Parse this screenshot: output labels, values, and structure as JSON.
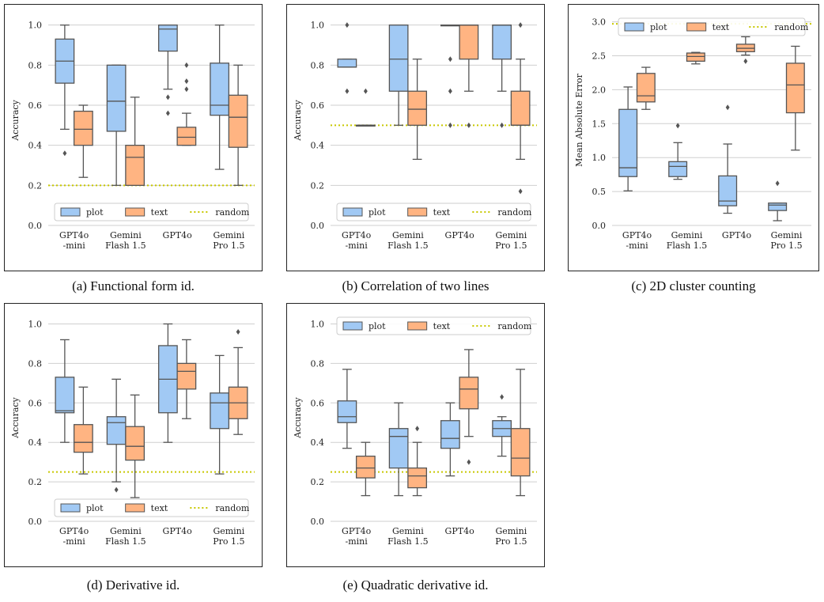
{
  "colors": {
    "plot": "#a1c9f4",
    "text": "#ffb482",
    "random": "#c8c800",
    "edge": "#555555",
    "grid": "#cfcfcf"
  },
  "captions": [
    "(a) Functional form id.",
    "(b) Correlation of two lines",
    "(c) 2D cluster counting",
    "(d) Derivative id.",
    "(e) Quadratic derivative id."
  ],
  "chart_data": [
    {
      "type": "box",
      "ylabel": "Accuracy",
      "ylim": [
        0,
        1.05
      ],
      "yticks": [
        "0.0",
        "0.2",
        "0.4",
        "0.6",
        "0.8",
        "1.0"
      ],
      "ytick_values": [
        0,
        0.2,
        0.4,
        0.6,
        0.8,
        1.0
      ],
      "categories": [
        [
          "GPT4o",
          "-mini"
        ],
        [
          "Gemini",
          "Flash 1.5"
        ],
        [
          "GPT4o"
        ],
        [
          "Gemini",
          "Pro 1.5"
        ]
      ],
      "legend": {
        "placement": "bottom",
        "labels": [
          "plot",
          "text",
          "random"
        ]
      },
      "random": 0.2,
      "series": [
        {
          "name": "plot",
          "boxes": [
            {
              "whislo": 0.48,
              "q1": 0.71,
              "med": 0.82,
              "q3": 0.93,
              "whishi": 1.0,
              "fliers": [
                0.36
              ]
            },
            {
              "whislo": 0.2,
              "q1": 0.47,
              "med": 0.62,
              "q3": 0.8,
              "whishi": 0.8,
              "fliers": []
            },
            {
              "whislo": 0.68,
              "q1": 0.87,
              "med": 0.98,
              "q3": 1.0,
              "whishi": 1.0,
              "fliers": [
                0.64,
                0.56
              ]
            },
            {
              "whislo": 0.28,
              "q1": 0.55,
              "med": 0.6,
              "q3": 0.81,
              "whishi": 1.0,
              "fliers": []
            }
          ]
        },
        {
          "name": "text",
          "boxes": [
            {
              "whislo": 0.24,
              "q1": 0.4,
              "med": 0.48,
              "q3": 0.57,
              "whishi": 0.6,
              "fliers": []
            },
            {
              "whislo": 0.2,
              "q1": 0.2,
              "med": 0.34,
              "q3": 0.4,
              "whishi": 0.64,
              "fliers": []
            },
            {
              "whislo": 0.4,
              "q1": 0.4,
              "med": 0.44,
              "q3": 0.49,
              "whishi": 0.56,
              "fliers": [
                0.8,
                0.72,
                0.68
              ]
            },
            {
              "whislo": 0.2,
              "q1": 0.39,
              "med": 0.54,
              "q3": 0.65,
              "whishi": 0.8,
              "fliers": []
            }
          ]
        }
      ]
    },
    {
      "type": "box",
      "ylabel": "Accuracy",
      "ylim": [
        0,
        1.05
      ],
      "yticks": [
        "0.0",
        "0.2",
        "0.4",
        "0.6",
        "0.8",
        "1.0"
      ],
      "ytick_values": [
        0,
        0.2,
        0.4,
        0.6,
        0.8,
        1.0
      ],
      "categories": [
        [
          "GPT4o",
          "-mini"
        ],
        [
          "Gemini",
          "Flash 1.5"
        ],
        [
          "GPT4o"
        ],
        [
          "Gemini",
          "Pro 1.5"
        ]
      ],
      "legend": {
        "placement": "bottom",
        "labels": [
          "plot",
          "text",
          "random"
        ]
      },
      "random": 0.5,
      "series": [
        {
          "name": "plot",
          "boxes": [
            {
              "whislo": 0.79,
              "q1": 0.79,
              "med": 0.79,
              "q3": 0.83,
              "whishi": 0.83,
              "fliers": [
                1.0,
                0.67
              ]
            },
            {
              "whislo": 0.5,
              "q1": 0.67,
              "med": 0.83,
              "q3": 1.0,
              "whishi": 1.0,
              "fliers": []
            },
            {
              "whislo": 1.0,
              "q1": 1.0,
              "med": 1.0,
              "q3": 1.0,
              "whishi": 1.0,
              "fliers": [
                0.83,
                0.67,
                0.5
              ]
            },
            {
              "whislo": 0.67,
              "q1": 0.83,
              "med": 1.0,
              "q3": 1.0,
              "whishi": 1.0,
              "fliers": [
                0.5
              ]
            }
          ]
        },
        {
          "name": "text",
          "boxes": [
            {
              "whislo": 0.5,
              "q1": 0.5,
              "med": 0.5,
              "q3": 0.5,
              "whishi": 0.5,
              "fliers": [
                0.67
              ]
            },
            {
              "whislo": 0.33,
              "q1": 0.5,
              "med": 0.58,
              "q3": 0.67,
              "whishi": 0.83,
              "fliers": []
            },
            {
              "whislo": 0.67,
              "q1": 0.83,
              "med": 1.0,
              "q3": 1.0,
              "whishi": 1.0,
              "fliers": [
                0.5
              ]
            },
            {
              "whislo": 0.33,
              "q1": 0.5,
              "med": 0.5,
              "q3": 0.67,
              "whishi": 0.83,
              "fliers": [
                1.0,
                0.17
              ]
            }
          ]
        }
      ]
    },
    {
      "type": "box",
      "ylabel": "Mean Absolute Error",
      "ylim": [
        0,
        3.1
      ],
      "yticks": [
        "0.0",
        "0.5",
        "1.0",
        "1.5",
        "2.0",
        "2.5",
        "3.0"
      ],
      "ytick_values": [
        0,
        0.5,
        1.0,
        1.5,
        2.0,
        2.5,
        3.0
      ],
      "categories": [
        [
          "GPT4o",
          "-mini"
        ],
        [
          "Gemini",
          "Flash 1.5"
        ],
        [
          "GPT4o"
        ],
        [
          "Gemini",
          "Pro 1.5"
        ]
      ],
      "legend": {
        "placement": "top",
        "labels": [
          "plot",
          "text",
          "random"
        ]
      },
      "random": 2.97,
      "series": [
        {
          "name": "plot",
          "boxes": [
            {
              "whislo": 0.51,
              "q1": 0.72,
              "med": 0.85,
              "q3": 1.71,
              "whishi": 2.04,
              "fliers": []
            },
            {
              "whislo": 0.68,
              "q1": 0.72,
              "med": 0.87,
              "q3": 0.94,
              "whishi": 1.22,
              "fliers": [
                1.47
              ]
            },
            {
              "whislo": 0.18,
              "q1": 0.29,
              "med": 0.36,
              "q3": 0.73,
              "whishi": 1.2,
              "fliers": [
                1.74
              ]
            },
            {
              "whislo": 0.07,
              "q1": 0.22,
              "med": 0.3,
              "q3": 0.33,
              "whishi": 0.33,
              "fliers": [
                0.62
              ]
            }
          ]
        },
        {
          "name": "text",
          "boxes": [
            {
              "whislo": 1.71,
              "q1": 1.82,
              "med": 1.91,
              "q3": 2.24,
              "whishi": 2.33,
              "fliers": []
            },
            {
              "whislo": 2.38,
              "q1": 2.42,
              "med": 2.49,
              "q3": 2.54,
              "whishi": 2.55,
              "fliers": []
            },
            {
              "whislo": 2.51,
              "q1": 2.56,
              "med": 2.61,
              "q3": 2.67,
              "whishi": 2.78,
              "fliers": [
                2.42
              ]
            },
            {
              "whislo": 1.11,
              "q1": 1.66,
              "med": 2.07,
              "q3": 2.39,
              "whishi": 2.64,
              "fliers": []
            }
          ]
        }
      ]
    },
    {
      "type": "box",
      "ylabel": "Accuracy",
      "ylim": [
        0,
        1.05
      ],
      "yticks": [
        "0.0",
        "0.2",
        "0.4",
        "0.6",
        "0.8",
        "1.0"
      ],
      "ytick_values": [
        0,
        0.2,
        0.4,
        0.6,
        0.8,
        1.0
      ],
      "categories": [
        [
          "GPT4o",
          "-mini"
        ],
        [
          "Gemini",
          "Flash 1.5"
        ],
        [
          "GPT4o"
        ],
        [
          "Gemini",
          "Pro 1.5"
        ]
      ],
      "legend": {
        "placement": "bottom",
        "labels": [
          "plot",
          "text",
          "random"
        ]
      },
      "random": 0.25,
      "series": [
        {
          "name": "plot",
          "boxes": [
            {
              "whislo": 0.4,
              "q1": 0.55,
              "med": 0.56,
              "q3": 0.73,
              "whishi": 0.92,
              "fliers": []
            },
            {
              "whislo": 0.2,
              "q1": 0.39,
              "med": 0.5,
              "q3": 0.53,
              "whishi": 0.72,
              "fliers": [
                0.16
              ]
            },
            {
              "whislo": 0.4,
              "q1": 0.55,
              "med": 0.72,
              "q3": 0.89,
              "whishi": 1.0,
              "fliers": []
            },
            {
              "whislo": 0.24,
              "q1": 0.47,
              "med": 0.6,
              "q3": 0.65,
              "whishi": 0.84,
              "fliers": []
            }
          ]
        },
        {
          "name": "text",
          "boxes": [
            {
              "whislo": 0.24,
              "q1": 0.35,
              "med": 0.4,
              "q3": 0.49,
              "whishi": 0.68,
              "fliers": []
            },
            {
              "whislo": 0.12,
              "q1": 0.31,
              "med": 0.38,
              "q3": 0.48,
              "whishi": 0.64,
              "fliers": []
            },
            {
              "whislo": 0.52,
              "q1": 0.67,
              "med": 0.76,
              "q3": 0.8,
              "whishi": 0.92,
              "fliers": []
            },
            {
              "whislo": 0.44,
              "q1": 0.52,
              "med": 0.6,
              "q3": 0.68,
              "whishi": 0.88,
              "fliers": [
                0.96
              ]
            }
          ]
        }
      ]
    },
    {
      "type": "box",
      "ylabel": "Accuracy",
      "ylim": [
        0,
        1.05
      ],
      "yticks": [
        "0.0",
        "0.2",
        "0.4",
        "0.6",
        "0.8",
        "1.0"
      ],
      "ytick_values": [
        0,
        0.2,
        0.4,
        0.6,
        0.8,
        1.0
      ],
      "categories": [
        [
          "GPT4o",
          "-mini"
        ],
        [
          "Gemini",
          "Flash 1.5"
        ],
        [
          "GPT4o"
        ],
        [
          "Gemini",
          "Pro 1.5"
        ]
      ],
      "legend": {
        "placement": "top",
        "labels": [
          "plot",
          "text",
          "random"
        ]
      },
      "random": 0.25,
      "series": [
        {
          "name": "plot",
          "boxes": [
            {
              "whislo": 0.37,
              "q1": 0.5,
              "med": 0.53,
              "q3": 0.61,
              "whishi": 0.77,
              "fliers": []
            },
            {
              "whislo": 0.13,
              "q1": 0.27,
              "med": 0.43,
              "q3": 0.47,
              "whishi": 0.6,
              "fliers": []
            },
            {
              "whislo": 0.23,
              "q1": 0.37,
              "med": 0.42,
              "q3": 0.51,
              "whishi": 0.6,
              "fliers": []
            },
            {
              "whislo": 0.33,
              "q1": 0.43,
              "med": 0.47,
              "q3": 0.51,
              "whishi": 0.53,
              "fliers": [
                0.63
              ]
            }
          ]
        },
        {
          "name": "text",
          "boxes": [
            {
              "whislo": 0.13,
              "q1": 0.22,
              "med": 0.27,
              "q3": 0.33,
              "whishi": 0.4,
              "fliers": []
            },
            {
              "whislo": 0.13,
              "q1": 0.17,
              "med": 0.23,
              "q3": 0.27,
              "whishi": 0.4,
              "fliers": [
                0.47
              ]
            },
            {
              "whislo": 0.43,
              "q1": 0.57,
              "med": 0.67,
              "q3": 0.73,
              "whishi": 0.87,
              "fliers": [
                0.3
              ]
            },
            {
              "whislo": 0.13,
              "q1": 0.23,
              "med": 0.32,
              "q3": 0.47,
              "whishi": 0.77,
              "fliers": []
            }
          ]
        }
      ]
    }
  ]
}
